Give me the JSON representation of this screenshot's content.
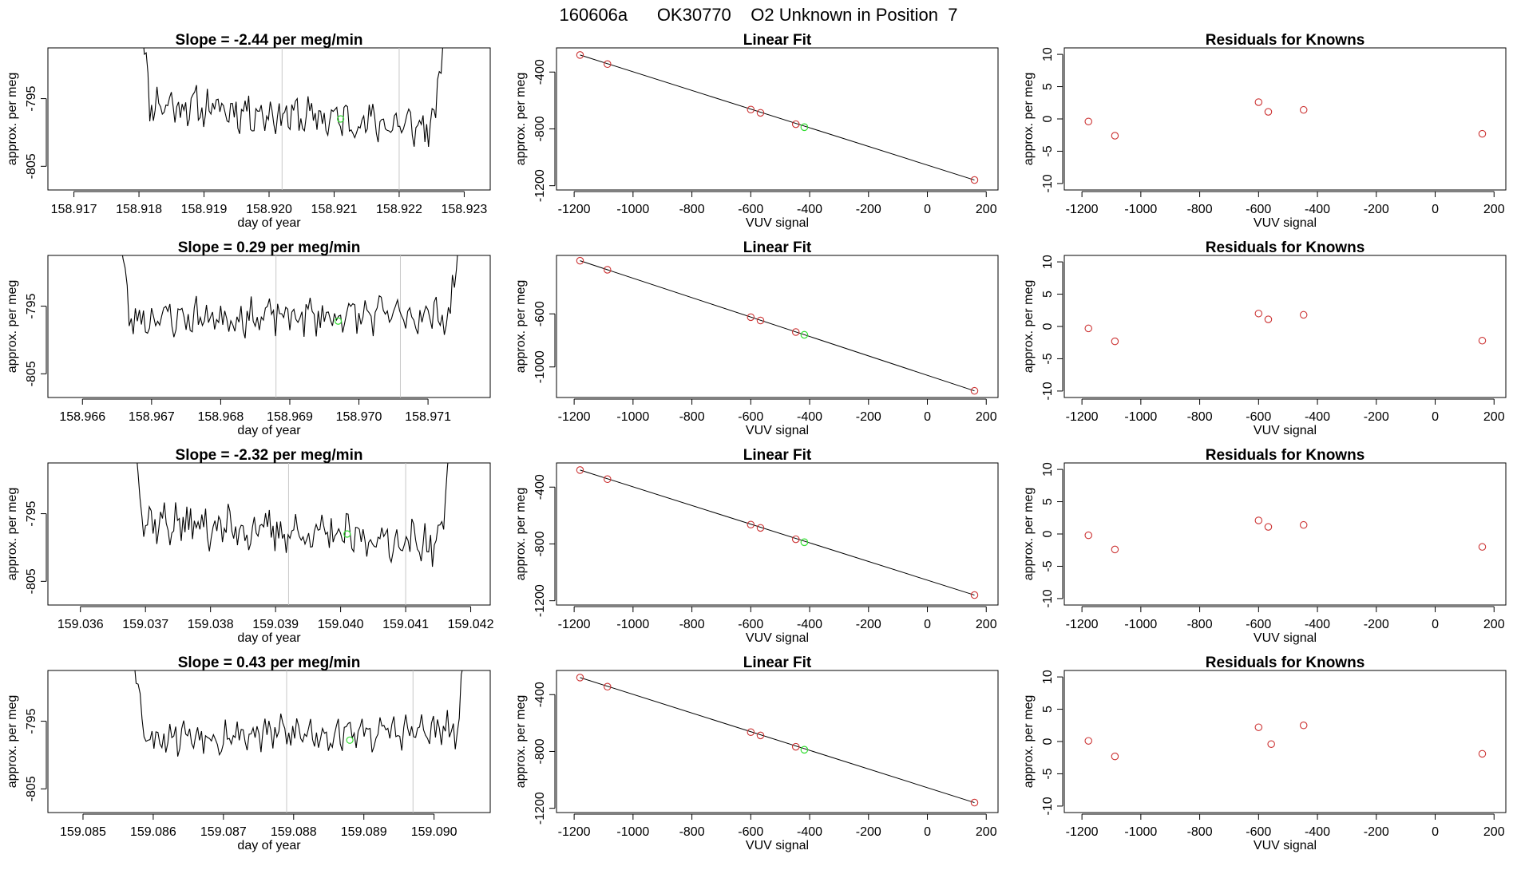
{
  "figure": {
    "title": "160606a      OK30770    O2 Unknown in Position  7"
  },
  "chart_data": [
    {
      "type": "line",
      "title": "Slope =  -2.44  per meg/min",
      "xlabel": "day of year",
      "ylabel": "approx. per meg",
      "xlim": [
        158.9166,
        158.9234
      ],
      "ylim": [
        -808.5,
        -787.5
      ],
      "xticks": [
        "158.917",
        "158.918",
        "158.919",
        "158.920",
        "158.921",
        "158.922",
        "158.923"
      ],
      "yticks": [
        "-795",
        "-805"
      ],
      "vlines": [
        158.9202,
        158.922
      ],
      "highlight": {
        "x": 158.9211,
        "y": -798.0
      },
      "x_start": 158.918,
      "x_end": 158.9227,
      "seed": 11,
      "base": -797.5,
      "trend": -2.5,
      "noise": 2.3
    },
    {
      "type": "scatter",
      "title": "Linear Fit",
      "xlabel": "VUV signal",
      "ylabel": "approx. per meg",
      "xlim": [
        -1260,
        240
      ],
      "ylim": [
        -1230,
        -230
      ],
      "xticks": [
        -1200,
        -1000,
        -800,
        -600,
        -400,
        -200,
        0,
        200
      ],
      "yticks": [
        -400,
        -800,
        -1200
      ],
      "fit_line": [
        [
          -1180,
          -280
        ],
        [
          160,
          -1160
        ]
      ],
      "points": [
        [
          -1180,
          -280
        ],
        [
          -1087,
          -344
        ],
        [
          -600,
          -664
        ],
        [
          -567,
          -687
        ],
        [
          -447,
          -767
        ],
        [
          160,
          -1160
        ]
      ],
      "unknown": [
        -418,
        -788
      ]
    },
    {
      "type": "scatter",
      "title": "Residuals for Knowns",
      "xlabel": "VUV signal",
      "ylabel": "approx. per meg",
      "xlim": [
        -1260,
        240
      ],
      "ylim": [
        -11,
        11
      ],
      "xticks": [
        -1200,
        -1000,
        -800,
        -600,
        -400,
        -200,
        0,
        200
      ],
      "yticks": [
        10,
        5,
        0,
        -5,
        -10
      ],
      "points": [
        [
          -1178,
          -0.4
        ],
        [
          -1088,
          -2.6
        ],
        [
          -600,
          2.6
        ],
        [
          -567,
          1.1
        ],
        [
          -447,
          1.4
        ],
        [
          160,
          -2.3
        ]
      ]
    },
    {
      "type": "line",
      "title": "Slope =  0.29  per meg/min",
      "xlabel": "day of year",
      "ylabel": "approx. per meg",
      "xlim": [
        158.9655,
        158.9719
      ],
      "ylim": [
        -808.5,
        -787.5
      ],
      "xticks": [
        "158.966",
        "158.967",
        "158.968",
        "158.969",
        "158.970",
        "158.971"
      ],
      "yticks": [
        "-795",
        "-805"
      ],
      "vlines": [
        158.9688,
        158.9706
      ],
      "highlight": {
        "x": 158.9697,
        "y": -797.2
      },
      "x_start": 158.9665,
      "x_end": 158.9715,
      "seed": 23,
      "base": -796.5,
      "trend": 0.3,
      "noise": 2.2
    },
    {
      "type": "scatter",
      "title": "Linear Fit",
      "xlabel": "VUV signal",
      "ylabel": "approx. per meg",
      "xlim": [
        -1260,
        240
      ],
      "ylim": [
        -1230,
        -160
      ],
      "xticks": [
        -1200,
        -1000,
        -800,
        -600,
        -400,
        -200,
        0,
        200
      ],
      "yticks": [
        -600,
        -1000
      ],
      "fit_line": [
        [
          -1180,
          -200
        ],
        [
          160,
          -1180
        ]
      ],
      "points": [
        [
          -1180,
          -200
        ],
        [
          -1087,
          -268
        ],
        [
          -600,
          -625
        ],
        [
          -567,
          -650
        ],
        [
          -447,
          -737
        ],
        [
          160,
          -1180
        ]
      ],
      "unknown": [
        -418,
        -758
      ]
    },
    {
      "type": "scatter",
      "title": "Residuals for Knowns",
      "xlabel": "VUV signal",
      "ylabel": "approx. per meg",
      "xlim": [
        -1260,
        240
      ],
      "ylim": [
        -11,
        11
      ],
      "xticks": [
        -1200,
        -1000,
        -800,
        -600,
        -400,
        -200,
        0,
        200
      ],
      "yticks": [
        10,
        5,
        0,
        -5,
        -10
      ],
      "points": [
        [
          -1178,
          -0.3
        ],
        [
          -1088,
          -2.3
        ],
        [
          -600,
          2.0
        ],
        [
          -567,
          1.1
        ],
        [
          -447,
          1.8
        ],
        [
          160,
          -2.2
        ]
      ]
    },
    {
      "type": "line",
      "title": "Slope =  -2.32  per meg/min",
      "xlabel": "day of year",
      "ylabel": "approx. per meg",
      "xlim": [
        159.0355,
        159.0423
      ],
      "ylim": [
        -808.5,
        -787.5
      ],
      "xticks": [
        "159.036",
        "159.037",
        "159.038",
        "159.039",
        "159.040",
        "159.041",
        "159.042"
      ],
      "yticks": [
        "-795",
        "-805"
      ],
      "vlines": [
        159.0392,
        159.041
      ],
      "highlight": {
        "x": 159.0401,
        "y": -798.0
      },
      "x_start": 159.0368,
      "x_end": 159.0417,
      "seed": 37,
      "base": -797.8,
      "trend": -2.3,
      "noise": 2.4
    },
    {
      "type": "scatter",
      "title": "Linear Fit",
      "xlabel": "VUV signal",
      "ylabel": "approx. per meg",
      "xlim": [
        -1260,
        240
      ],
      "ylim": [
        -1230,
        -230
      ],
      "xticks": [
        -1200,
        -1000,
        -800,
        -600,
        -400,
        -200,
        0,
        200
      ],
      "yticks": [
        -400,
        -800,
        -1200
      ],
      "fit_line": [
        [
          -1180,
          -280
        ],
        [
          160,
          -1160
        ]
      ],
      "points": [
        [
          -1180,
          -280
        ],
        [
          -1087,
          -344
        ],
        [
          -600,
          -664
        ],
        [
          -567,
          -687
        ],
        [
          -447,
          -767
        ],
        [
          160,
          -1160
        ]
      ],
      "unknown": [
        -418,
        -788
      ]
    },
    {
      "type": "scatter",
      "title": "Residuals for Knowns",
      "xlabel": "VUV signal",
      "ylabel": "approx. per meg",
      "xlim": [
        -1260,
        240
      ],
      "ylim": [
        -11,
        11
      ],
      "xticks": [
        -1200,
        -1000,
        -800,
        -600,
        -400,
        -200,
        0,
        200
      ],
      "yticks": [
        10,
        5,
        0,
        -5,
        -10
      ],
      "points": [
        [
          -1178,
          -0.2
        ],
        [
          -1088,
          -2.4
        ],
        [
          -600,
          2.1
        ],
        [
          -567,
          1.1
        ],
        [
          -447,
          1.4
        ],
        [
          160,
          -2.0
        ]
      ]
    },
    {
      "type": "line",
      "title": "Slope =  0.43  per meg/min",
      "xlabel": "day of year",
      "ylabel": "approx. per meg",
      "xlim": [
        159.0845,
        159.0908
      ],
      "ylim": [
        -808.5,
        -787.5
      ],
      "xticks": [
        "159.085",
        "159.086",
        "159.087",
        "159.088",
        "159.089",
        "159.090"
      ],
      "yticks": [
        "-795",
        "-805"
      ],
      "vlines": [
        159.0879,
        159.0897
      ],
      "highlight": {
        "x": 159.0888,
        "y": -797.8
      },
      "x_start": 159.0857,
      "x_end": 159.0905,
      "seed": 53,
      "base": -796.8,
      "trend": 0.4,
      "noise": 2.2
    },
    {
      "type": "scatter",
      "title": "Linear Fit",
      "xlabel": "VUV signal",
      "ylabel": "approx. per meg",
      "xlim": [
        -1260,
        240
      ],
      "ylim": [
        -1230,
        -230
      ],
      "xticks": [
        -1200,
        -1000,
        -800,
        -600,
        -400,
        -200,
        0,
        200
      ],
      "yticks": [
        -400,
        -800,
        -1200
      ],
      "fit_line": [
        [
          -1180,
          -280
        ],
        [
          160,
          -1160
        ]
      ],
      "points": [
        [
          -1180,
          -280
        ],
        [
          -1087,
          -344
        ],
        [
          -600,
          -664
        ],
        [
          -567,
          -687
        ],
        [
          -447,
          -767
        ],
        [
          160,
          -1160
        ]
      ],
      "unknown": [
        -418,
        -788
      ]
    },
    {
      "type": "scatter",
      "title": "Residuals for Knowns",
      "xlabel": "VUV signal",
      "ylabel": "approx. per meg",
      "xlim": [
        -1260,
        240
      ],
      "ylim": [
        -11,
        11
      ],
      "xticks": [
        -1200,
        -1000,
        -800,
        -600,
        -400,
        -200,
        0,
        200
      ],
      "yticks": [
        10,
        5,
        0,
        -5,
        -10
      ],
      "points": [
        [
          -1178,
          0.1
        ],
        [
          -1088,
          -2.3
        ],
        [
          -600,
          2.2
        ],
        [
          -557,
          -0.4
        ],
        [
          -447,
          2.5
        ],
        [
          160,
          -1.9
        ]
      ]
    }
  ]
}
